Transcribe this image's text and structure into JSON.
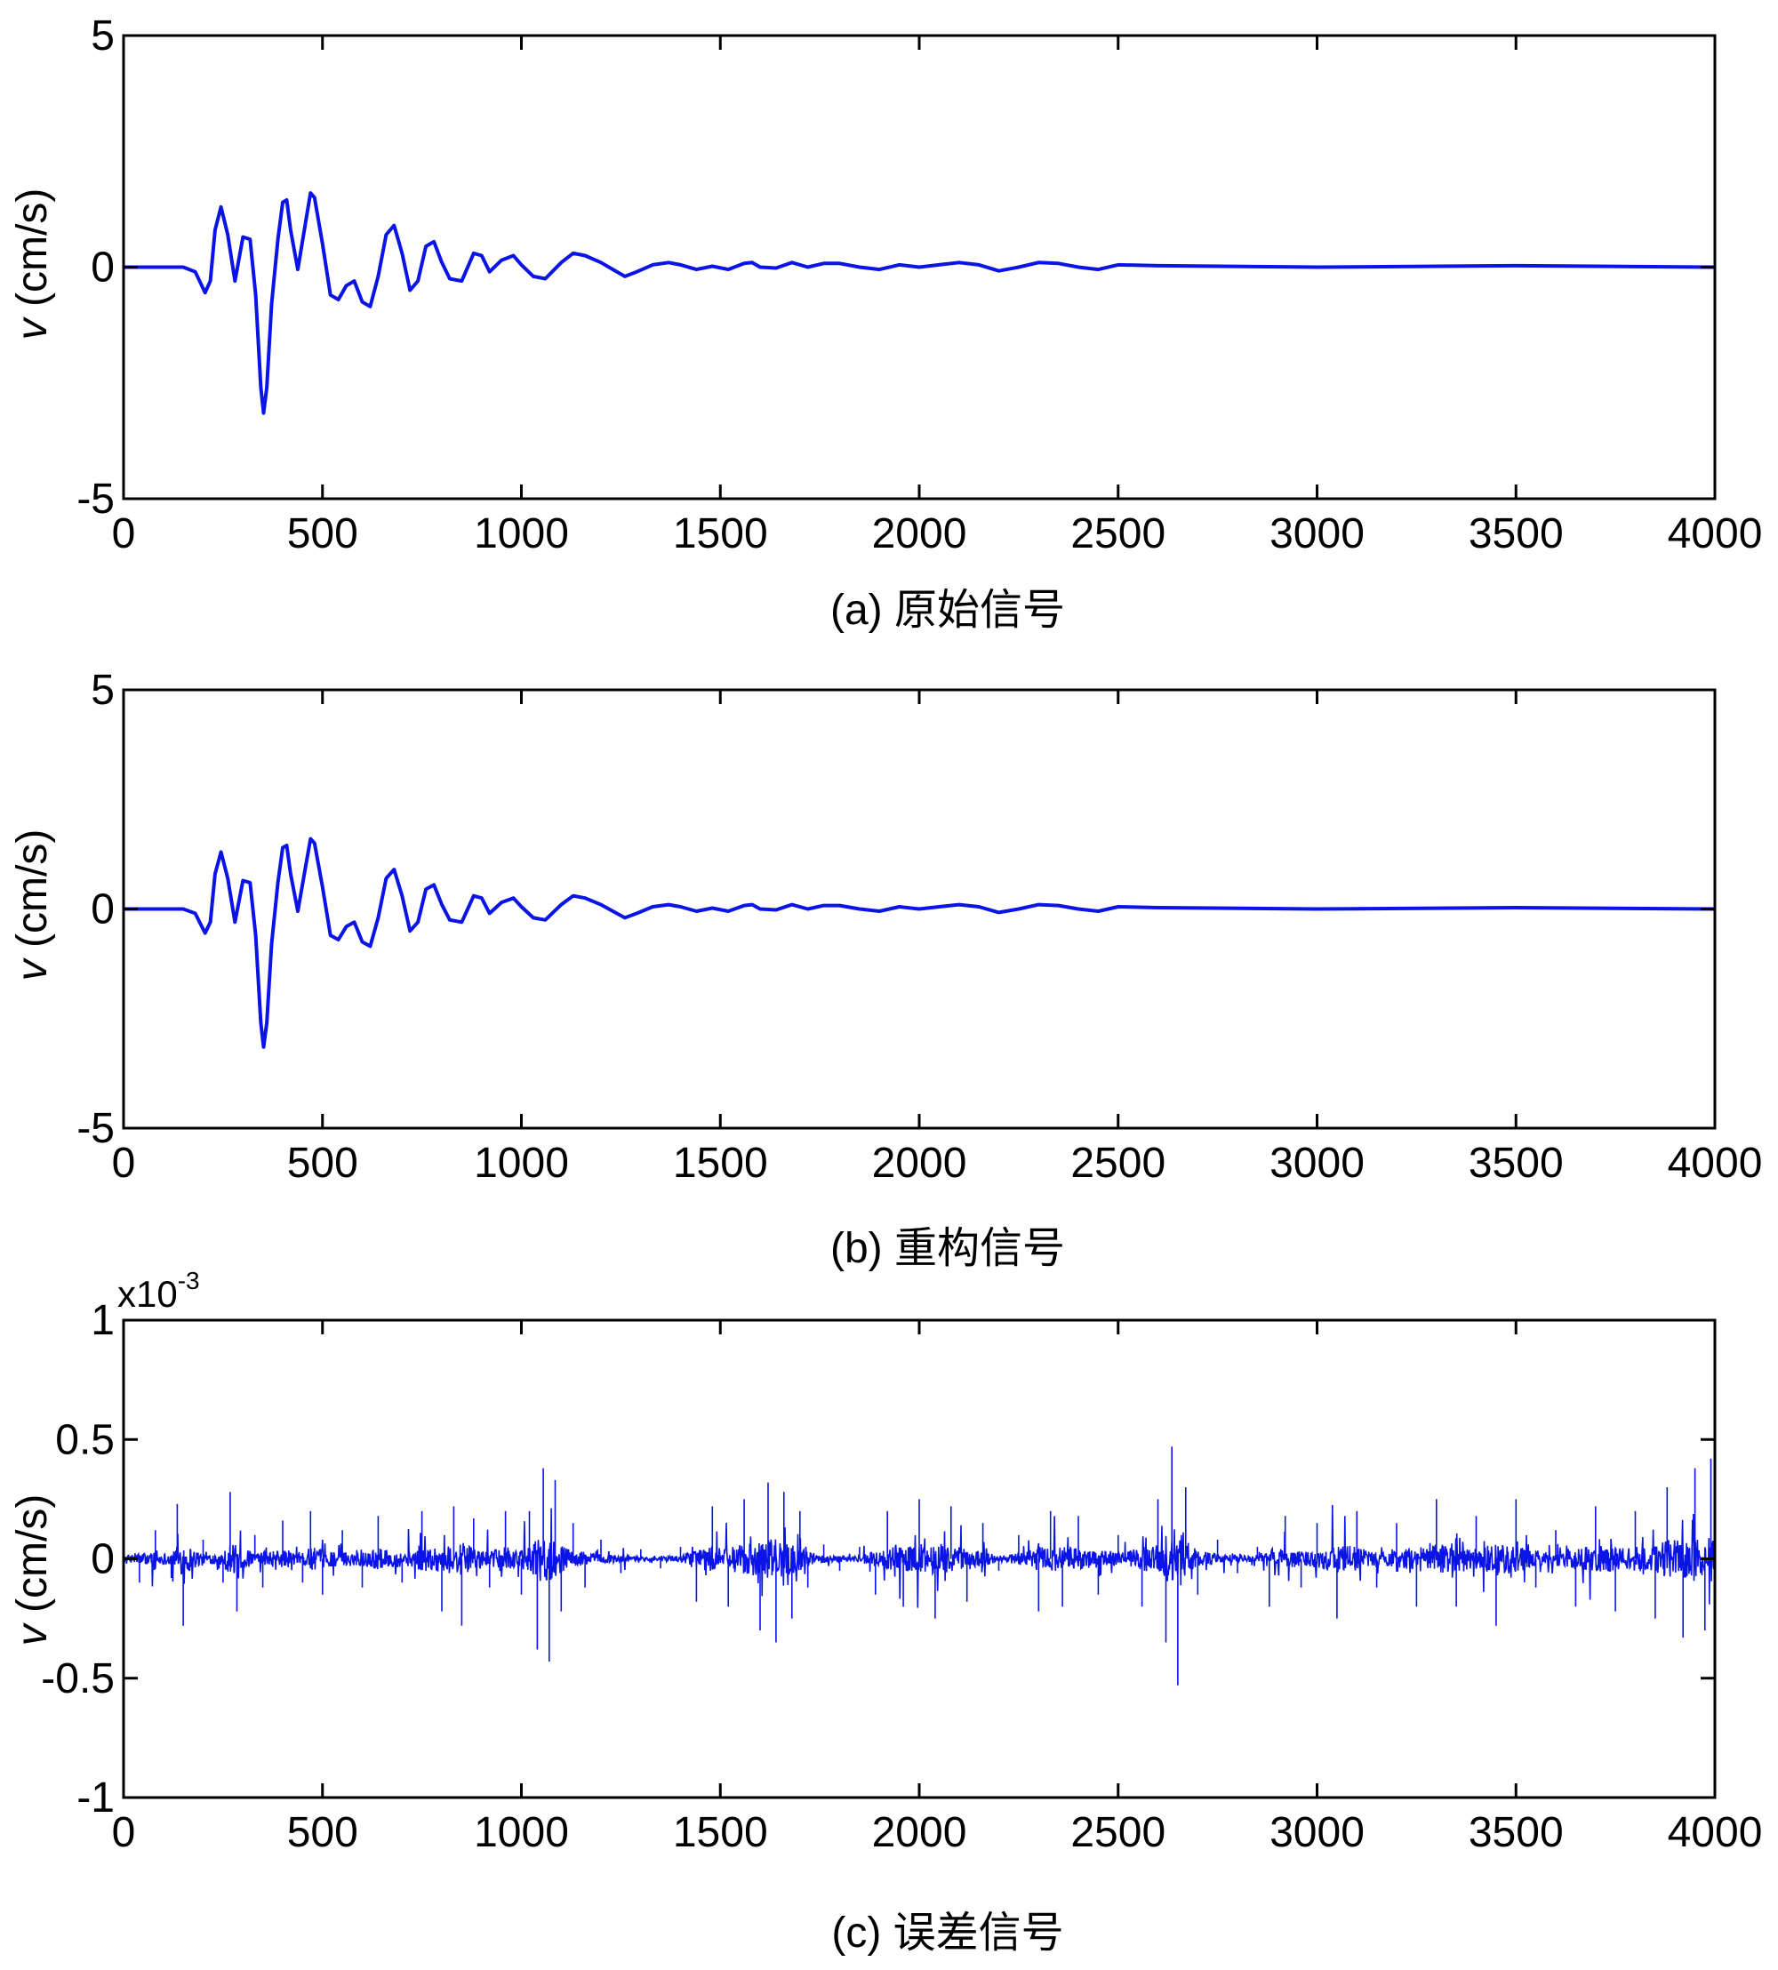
{
  "colors": {
    "line": "#0a14e6",
    "axes": "#000000",
    "background": "#ffffff"
  },
  "chart_data": [
    {
      "type": "line",
      "caption": "(a) 原始信号",
      "ylabel_italic": "v",
      "ylabel_unit": " (cm/s)",
      "xlim": [
        0,
        4000
      ],
      "ylim": [
        -5,
        5
      ],
      "xticks": [
        "0",
        "500",
        "1000",
        "1500",
        "2000",
        "2500",
        "3000",
        "3500",
        "4000"
      ],
      "yticks": [
        "5",
        "0",
        "-5"
      ],
      "ytick_values": [
        5,
        0,
        -5
      ],
      "grid": false,
      "series": [
        {
          "x": [
            0,
            150,
            180,
            205,
            218,
            230,
            245,
            262,
            280,
            300,
            318,
            332,
            345,
            352,
            360,
            372,
            388,
            400,
            410,
            420,
            438,
            460,
            470,
            480,
            500,
            520,
            540,
            560,
            580,
            600,
            620,
            640,
            660,
            680,
            700,
            720,
            740,
            760,
            780,
            800,
            820,
            850,
            880,
            900,
            920,
            950,
            980,
            1000,
            1030,
            1060,
            1100,
            1130,
            1160,
            1200,
            1230,
            1260,
            1290,
            1330,
            1370,
            1400,
            1440,
            1480,
            1520,
            1560,
            1580,
            1600,
            1640,
            1680,
            1720,
            1760,
            1800,
            1850,
            1900,
            1950,
            2000,
            2050,
            2100,
            2150,
            2200,
            2250,
            2300,
            2350,
            2400,
            2450,
            2500,
            2600,
            3000,
            3500,
            4000
          ],
          "y": [
            0,
            0,
            -0.1,
            -0.55,
            -0.3,
            0.8,
            1.3,
            0.7,
            -0.3,
            0.65,
            0.6,
            -0.6,
            -2.6,
            -3.15,
            -2.6,
            -0.8,
            0.6,
            1.4,
            1.45,
            0.8,
            -0.05,
            1.1,
            1.6,
            1.5,
            0.5,
            -0.6,
            -0.7,
            -0.4,
            -0.3,
            -0.75,
            -0.85,
            -0.2,
            0.7,
            0.9,
            0.3,
            -0.5,
            -0.3,
            0.45,
            0.55,
            0.1,
            -0.25,
            -0.3,
            0.3,
            0.25,
            -0.1,
            0.15,
            0.25,
            0.05,
            -0.2,
            -0.25,
            0.1,
            0.3,
            0.25,
            0.1,
            -0.05,
            -0.2,
            -0.1,
            0.05,
            0.1,
            0.05,
            -0.05,
            0.02,
            -0.05,
            0.08,
            0.1,
            0,
            -0.02,
            0.1,
            0,
            0.08,
            0.08,
            0,
            -0.05,
            0.05,
            0,
            0.05,
            0.1,
            0.05,
            -0.08,
            0,
            0.1,
            0.08,
            0,
            -0.05,
            0.05,
            0.03,
            0,
            0.03,
            0
          ]
        }
      ]
    },
    {
      "type": "line",
      "caption": "(b)  重构信号",
      "ylabel_italic": "v",
      "ylabel_unit": " (cm/s)",
      "xlim": [
        0,
        4000
      ],
      "ylim": [
        -5,
        5
      ],
      "xticks": [
        "0",
        "500",
        "1000",
        "1500",
        "2000",
        "2500",
        "3000",
        "3500",
        "4000"
      ],
      "yticks": [
        "5",
        "0",
        "-5"
      ],
      "ytick_values": [
        5,
        0,
        -5
      ],
      "grid": false,
      "series": [
        {
          "x": [
            0,
            150,
            180,
            205,
            218,
            230,
            245,
            262,
            280,
            300,
            318,
            332,
            345,
            352,
            360,
            372,
            388,
            400,
            410,
            420,
            438,
            460,
            470,
            480,
            500,
            520,
            540,
            560,
            580,
            600,
            620,
            640,
            660,
            680,
            700,
            720,
            740,
            760,
            780,
            800,
            820,
            850,
            880,
            900,
            920,
            950,
            980,
            1000,
            1030,
            1060,
            1100,
            1130,
            1160,
            1200,
            1230,
            1260,
            1290,
            1330,
            1370,
            1400,
            1440,
            1480,
            1520,
            1560,
            1580,
            1600,
            1640,
            1680,
            1720,
            1760,
            1800,
            1850,
            1900,
            1950,
            2000,
            2050,
            2100,
            2150,
            2200,
            2250,
            2300,
            2350,
            2400,
            2450,
            2500,
            2600,
            3000,
            3500,
            4000
          ],
          "y": [
            0,
            0,
            -0.1,
            -0.55,
            -0.3,
            0.8,
            1.3,
            0.7,
            -0.3,
            0.65,
            0.6,
            -0.6,
            -2.6,
            -3.15,
            -2.6,
            -0.8,
            0.6,
            1.4,
            1.45,
            0.8,
            -0.05,
            1.1,
            1.6,
            1.5,
            0.5,
            -0.6,
            -0.7,
            -0.4,
            -0.3,
            -0.75,
            -0.85,
            -0.2,
            0.7,
            0.9,
            0.3,
            -0.5,
            -0.3,
            0.45,
            0.55,
            0.1,
            -0.25,
            -0.3,
            0.3,
            0.25,
            -0.1,
            0.15,
            0.25,
            0.05,
            -0.2,
            -0.25,
            0.1,
            0.3,
            0.25,
            0.1,
            -0.05,
            -0.2,
            -0.1,
            0.05,
            0.1,
            0.05,
            -0.05,
            0.02,
            -0.05,
            0.08,
            0.1,
            0,
            -0.02,
            0.1,
            0,
            0.08,
            0.08,
            0,
            -0.05,
            0.05,
            0,
            0.05,
            0.1,
            0.05,
            -0.08,
            0,
            0.1,
            0.08,
            0,
            -0.05,
            0.05,
            0.03,
            0,
            0.03,
            0
          ]
        }
      ]
    },
    {
      "type": "line",
      "caption": "(c) 误差信号",
      "ylabel_italic": "v",
      "ylabel_unit": " (cm/s)",
      "multiplier_base": "x10",
      "multiplier_exp": "-3",
      "xlim": [
        0,
        4000
      ],
      "ylim": [
        -1,
        1
      ],
      "xticks": [
        "0",
        "500",
        "1000",
        "1500",
        "2000",
        "2500",
        "3000",
        "3500",
        "4000"
      ],
      "yticks": [
        "1",
        "0.5",
        "0",
        "-0.5",
        "-1"
      ],
      "ytick_values": [
        1,
        0.5,
        0,
        -0.5,
        -1
      ],
      "grid": false,
      "series": [
        {
          "x": [
            0,
            40,
            80,
            120,
            135,
            150,
            200,
            250,
            268,
            285,
            330,
            350,
            400,
            450,
            470,
            500,
            550,
            600,
            640,
            700,
            750,
            800,
            830,
            850,
            880,
            920,
            960,
            1000,
            1020,
            1040,
            1055,
            1070,
            1085,
            1100,
            1130,
            1160,
            1200,
            1250,
            1300,
            1350,
            1400,
            1440,
            1480,
            1520,
            1560,
            1600,
            1620,
            1640,
            1660,
            1680,
            1700,
            1720,
            1760,
            1800,
            1850,
            1890,
            1920,
            1960,
            2000,
            2040,
            2080,
            2120,
            2160,
            2200,
            2250,
            2300,
            2330,
            2360,
            2400,
            2450,
            2500,
            2560,
            2600,
            2620,
            2635,
            2650,
            2670,
            2700,
            2750,
            2800,
            2850,
            2880,
            2920,
            2960,
            3000,
            3050,
            3100,
            3150,
            3200,
            3250,
            3300,
            3350,
            3400,
            3450,
            3500,
            3550,
            3600,
            3650,
            3700,
            3750,
            3800,
            3850,
            3880,
            3920,
            3950,
            3975,
            3990,
            4000
          ],
          "y": [
            0.03,
            -0.1,
            0.12,
            -0.08,
            0.23,
            -0.28,
            0.08,
            -0.1,
            0.28,
            -0.22,
            0.1,
            -0.12,
            0.16,
            -0.1,
            0.2,
            -0.15,
            0.12,
            -0.12,
            0.18,
            -0.1,
            0.2,
            -0.22,
            0.22,
            -0.28,
            0.17,
            -0.12,
            0.2,
            -0.15,
            0.2,
            -0.38,
            0.38,
            -0.43,
            0.33,
            -0.22,
            0.15,
            -0.12,
            0.08,
            -0.06,
            0.04,
            -0.04,
            0.05,
            -0.18,
            0.22,
            -0.2,
            0.25,
            -0.3,
            0.32,
            -0.35,
            0.28,
            -0.25,
            0.2,
            -0.12,
            0.06,
            -0.05,
            0.05,
            -0.15,
            0.2,
            -0.2,
            0.25,
            -0.25,
            0.22,
            -0.18,
            0.15,
            -0.05,
            0.1,
            -0.22,
            0.2,
            -0.2,
            0.18,
            -0.15,
            0.1,
            -0.2,
            0.25,
            -0.35,
            0.47,
            -0.53,
            0.3,
            -0.15,
            0.08,
            -0.06,
            0.05,
            -0.2,
            0.18,
            -0.12,
            0.15,
            -0.25,
            0.2,
            -0.12,
            0.15,
            -0.2,
            0.25,
            -0.2,
            0.18,
            -0.28,
            0.25,
            -0.12,
            0.12,
            -0.2,
            0.22,
            -0.22,
            0.2,
            -0.25,
            0.3,
            -0.33,
            0.38,
            -0.3,
            0.42,
            -0.2
          ]
        }
      ]
    }
  ]
}
